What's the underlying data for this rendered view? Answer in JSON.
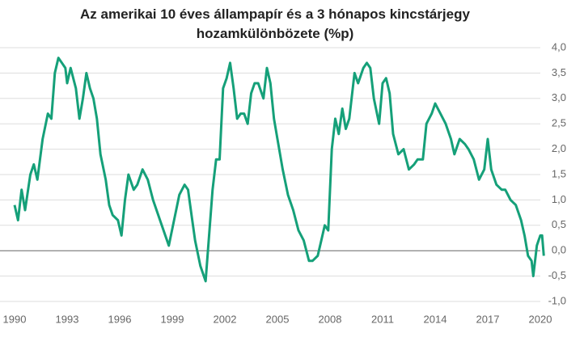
{
  "chart_data": {
    "type": "line",
    "title": "Az amerikai 10 éves állampapír és a 3 hónapos kincstárjegy hozamkülönbözete (%p)",
    "x": [
      1990.0,
      1990.2,
      1990.4,
      1990.6,
      1990.9,
      1991.1,
      1991.3,
      1991.6,
      1991.9,
      1992.1,
      1992.3,
      1992.5,
      1992.7,
      1992.9,
      1993.0,
      1993.2,
      1993.5,
      1993.7,
      1993.9,
      1994.1,
      1994.3,
      1994.5,
      1994.7,
      1994.9,
      1995.2,
      1995.4,
      1995.6,
      1995.9,
      1996.1,
      1996.3,
      1996.5,
      1996.8,
      1997.0,
      1997.3,
      1997.6,
      1997.9,
      1998.2,
      1998.5,
      1998.8,
      1999.1,
      1999.4,
      1999.7,
      1999.9,
      2000.1,
      2000.3,
      2000.6,
      2000.9,
      2001.1,
      2001.3,
      2001.5,
      2001.7,
      2001.9,
      2002.1,
      2002.3,
      2002.5,
      2002.7,
      2002.9,
      2003.1,
      2003.3,
      2003.5,
      2003.7,
      2003.9,
      2004.2,
      2004.4,
      2004.6,
      2004.8,
      2005.0,
      2005.3,
      2005.6,
      2005.9,
      2006.2,
      2006.5,
      2006.8,
      2007.0,
      2007.3,
      2007.5,
      2007.7,
      2007.9,
      2008.1,
      2008.3,
      2008.5,
      2008.7,
      2008.9,
      2009.1,
      2009.4,
      2009.6,
      2009.9,
      2010.1,
      2010.3,
      2010.5,
      2010.8,
      2011.0,
      2011.2,
      2011.4,
      2011.6,
      2011.9,
      2012.2,
      2012.5,
      2012.8,
      2013.0,
      2013.3,
      2013.5,
      2013.8,
      2014.0,
      2014.3,
      2014.6,
      2014.9,
      2015.1,
      2015.4,
      2015.7,
      2015.9,
      2016.2,
      2016.5,
      2016.8,
      2017.0,
      2017.2,
      2017.5,
      2017.8,
      2018.0,
      2018.3,
      2018.6,
      2018.9,
      2019.1,
      2019.3,
      2019.5,
      2019.6,
      2019.8,
      2019.9,
      2020.0,
      2020.1,
      2020.2
    ],
    "series": [
      {
        "name": "Hozamkülönbözet",
        "color": "#15a079",
        "values": [
          0.9,
          0.6,
          1.2,
          0.8,
          1.5,
          1.7,
          1.4,
          2.2,
          2.7,
          2.6,
          3.5,
          3.8,
          3.7,
          3.6,
          3.3,
          3.6,
          3.2,
          2.6,
          3.0,
          3.5,
          3.2,
          3.0,
          2.6,
          1.9,
          1.4,
          0.9,
          0.7,
          0.6,
          0.3,
          1.0,
          1.5,
          1.2,
          1.3,
          1.6,
          1.4,
          1.0,
          0.7,
          0.4,
          0.1,
          0.6,
          1.1,
          1.3,
          1.2,
          0.7,
          0.2,
          -0.3,
          -0.6,
          0.3,
          1.2,
          1.8,
          1.8,
          3.2,
          3.4,
          3.7,
          3.2,
          2.6,
          2.7,
          2.7,
          2.5,
          3.1,
          3.3,
          3.3,
          3.0,
          3.6,
          3.3,
          2.6,
          2.2,
          1.6,
          1.1,
          0.8,
          0.4,
          0.2,
          -0.2,
          -0.2,
          -0.1,
          0.2,
          0.5,
          0.4,
          2.0,
          2.6,
          2.3,
          2.8,
          2.4,
          2.6,
          3.5,
          3.3,
          3.6,
          3.7,
          3.6,
          3.0,
          2.5,
          3.3,
          3.4,
          3.1,
          2.3,
          1.9,
          2.0,
          1.6,
          1.7,
          1.8,
          1.8,
          2.5,
          2.7,
          2.9,
          2.7,
          2.5,
          2.2,
          1.9,
          2.2,
          2.1,
          2.0,
          1.8,
          1.4,
          1.6,
          2.2,
          1.6,
          1.3,
          1.2,
          1.2,
          1.0,
          0.9,
          0.6,
          0.3,
          -0.1,
          -0.2,
          -0.5,
          0.1,
          0.2,
          0.3,
          0.3,
          -0.1
        ]
      }
    ],
    "xlim": [
      1990,
      2020
    ],
    "xticks": [
      1990,
      1993,
      1996,
      1999,
      2002,
      2005,
      2008,
      2011,
      2014,
      2017,
      2020
    ],
    "ylim": [
      -1,
      4
    ],
    "yticks": [
      {
        "value": 4,
        "label": "4,0"
      },
      {
        "value": 3.5,
        "label": "3,5"
      },
      {
        "value": 3,
        "label": "3,0"
      },
      {
        "value": 2.5,
        "label": "2,5"
      },
      {
        "value": 2,
        "label": "2,0"
      },
      {
        "value": 1.5,
        "label": "1,5"
      },
      {
        "value": 1,
        "label": "1,0"
      },
      {
        "value": 0.5,
        "label": "0,5"
      },
      {
        "value": 0,
        "label": "0,0"
      },
      {
        "value": -0.5,
        "label": "-0,5"
      },
      {
        "value": -1,
        "label": "-1,0"
      }
    ],
    "grid": true
  }
}
